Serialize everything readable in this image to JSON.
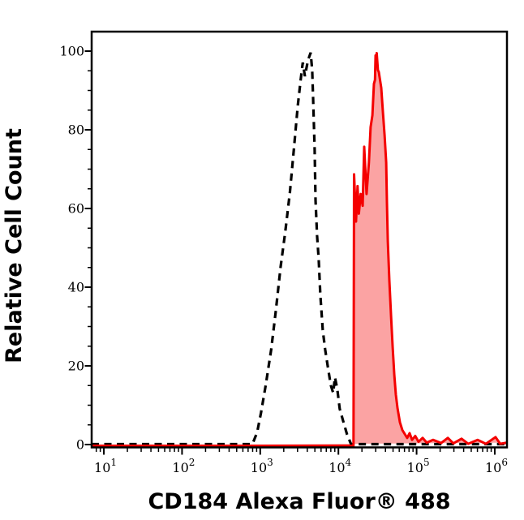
{
  "figure": {
    "kind": "flow-cytometry-histogram",
    "background": "#ffffff"
  },
  "chart_data": {
    "type": "area",
    "title": "",
    "xlabel": "CD184 Alexa Fluor® 488",
    "ylabel": "Relative Cell Count",
    "x_axis": {
      "label": "CD184 Alexa Fluor® 488",
      "scale": "log10",
      "decade_exponents": [
        1,
        2,
        3,
        4,
        5,
        6
      ],
      "tick_base": "10",
      "range_log10": [
        0.844,
        6.156
      ],
      "minor_ticks": "log-decade (2-9 per decade)"
    },
    "y_axis": {
      "label": "Relative Cell Count",
      "major_ticks": [
        0,
        20,
        40,
        60,
        80,
        100
      ],
      "minor_tick_step": 5,
      "range": [
        0,
        105
      ]
    },
    "grid": false,
    "legend": false,
    "series": [
      {
        "name": "control-dashed",
        "style": "dashed",
        "color": "#000000",
        "fill": "none",
        "peak_log10x": 3.645,
        "peak_value": 99.5,
        "points_log10x_value": [
          [
            0.844,
            0
          ],
          [
            2.9,
            0
          ],
          [
            2.96,
            3
          ],
          [
            3.01,
            8
          ],
          [
            3.07,
            15
          ],
          [
            3.14,
            24
          ],
          [
            3.2,
            34
          ],
          [
            3.26,
            45
          ],
          [
            3.32,
            54
          ],
          [
            3.38,
            64
          ],
          [
            3.43,
            75
          ],
          [
            3.48,
            86
          ],
          [
            3.52,
            93
          ],
          [
            3.545,
            97
          ],
          [
            3.572,
            93.5
          ],
          [
            3.61,
            97.5
          ],
          [
            3.645,
            99.5
          ],
          [
            3.665,
            95
          ],
          [
            3.676,
            88
          ],
          [
            3.696,
            75
          ],
          [
            3.707,
            62
          ],
          [
            3.727,
            53
          ],
          [
            3.748,
            47
          ],
          [
            3.769,
            38
          ],
          [
            3.8,
            29
          ],
          [
            3.831,
            24
          ],
          [
            3.862,
            20
          ],
          [
            3.903,
            15
          ],
          [
            3.934,
            13
          ],
          [
            3.955,
            17
          ],
          [
            3.986,
            14
          ],
          [
            4.017,
            9
          ],
          [
            4.059,
            6
          ],
          [
            4.11,
            2.5
          ],
          [
            4.162,
            0
          ],
          [
            6.156,
            0
          ]
        ]
      },
      {
        "name": "stain-red",
        "style": "solid-filled",
        "color": "#f40000",
        "fill": "rgba(244,0,0,0.36)",
        "peak_log10x": 4.49,
        "peak_value": 99.8,
        "points_log10x_value": [
          [
            0.844,
            0
          ],
          [
            4.193,
            0
          ],
          [
            4.2,
            69
          ],
          [
            4.225,
            57
          ],
          [
            4.245,
            66
          ],
          [
            4.262,
            59
          ],
          [
            4.285,
            64
          ],
          [
            4.31,
            61
          ],
          [
            4.33,
            76
          ],
          [
            4.36,
            64
          ],
          [
            4.39,
            72
          ],
          [
            4.412,
            81
          ],
          [
            4.435,
            84
          ],
          [
            4.455,
            92
          ],
          [
            4.468,
            93
          ],
          [
            4.475,
            99.2
          ],
          [
            4.481,
            96.5
          ],
          [
            4.49,
            99.8
          ],
          [
            4.505,
            95.5
          ],
          [
            4.517,
            95
          ],
          [
            4.548,
            91
          ],
          [
            4.569,
            85
          ],
          [
            4.59,
            79
          ],
          [
            4.611,
            72
          ],
          [
            4.621,
            62
          ],
          [
            4.632,
            52
          ],
          [
            4.652,
            42
          ],
          [
            4.673,
            33
          ],
          [
            4.694,
            25
          ],
          [
            4.715,
            18
          ],
          [
            4.735,
            13
          ],
          [
            4.756,
            9.5
          ],
          [
            4.787,
            6
          ],
          [
            4.818,
            4
          ],
          [
            4.849,
            3
          ],
          [
            4.88,
            2
          ],
          [
            4.911,
            3.2
          ],
          [
            4.942,
            1.5
          ],
          [
            4.983,
            2.5
          ],
          [
            5.025,
            1
          ],
          [
            5.077,
            2
          ],
          [
            5.13,
            0.8
          ],
          [
            5.21,
            1.5
          ],
          [
            5.315,
            0.7
          ],
          [
            5.4,
            2
          ],
          [
            5.47,
            0.6
          ],
          [
            5.575,
            1.8
          ],
          [
            5.66,
            0.5
          ],
          [
            5.78,
            1.5
          ],
          [
            5.886,
            0.5
          ],
          [
            6.01,
            2.2
          ],
          [
            6.07,
            0.5
          ],
          [
            6.156,
            0.8
          ]
        ]
      }
    ],
    "colors": {
      "axis": "#000000",
      "stain_stroke": "#f40000",
      "stain_fill": "rgba(244,0,0,0.36)",
      "control_stroke": "#000000"
    }
  }
}
